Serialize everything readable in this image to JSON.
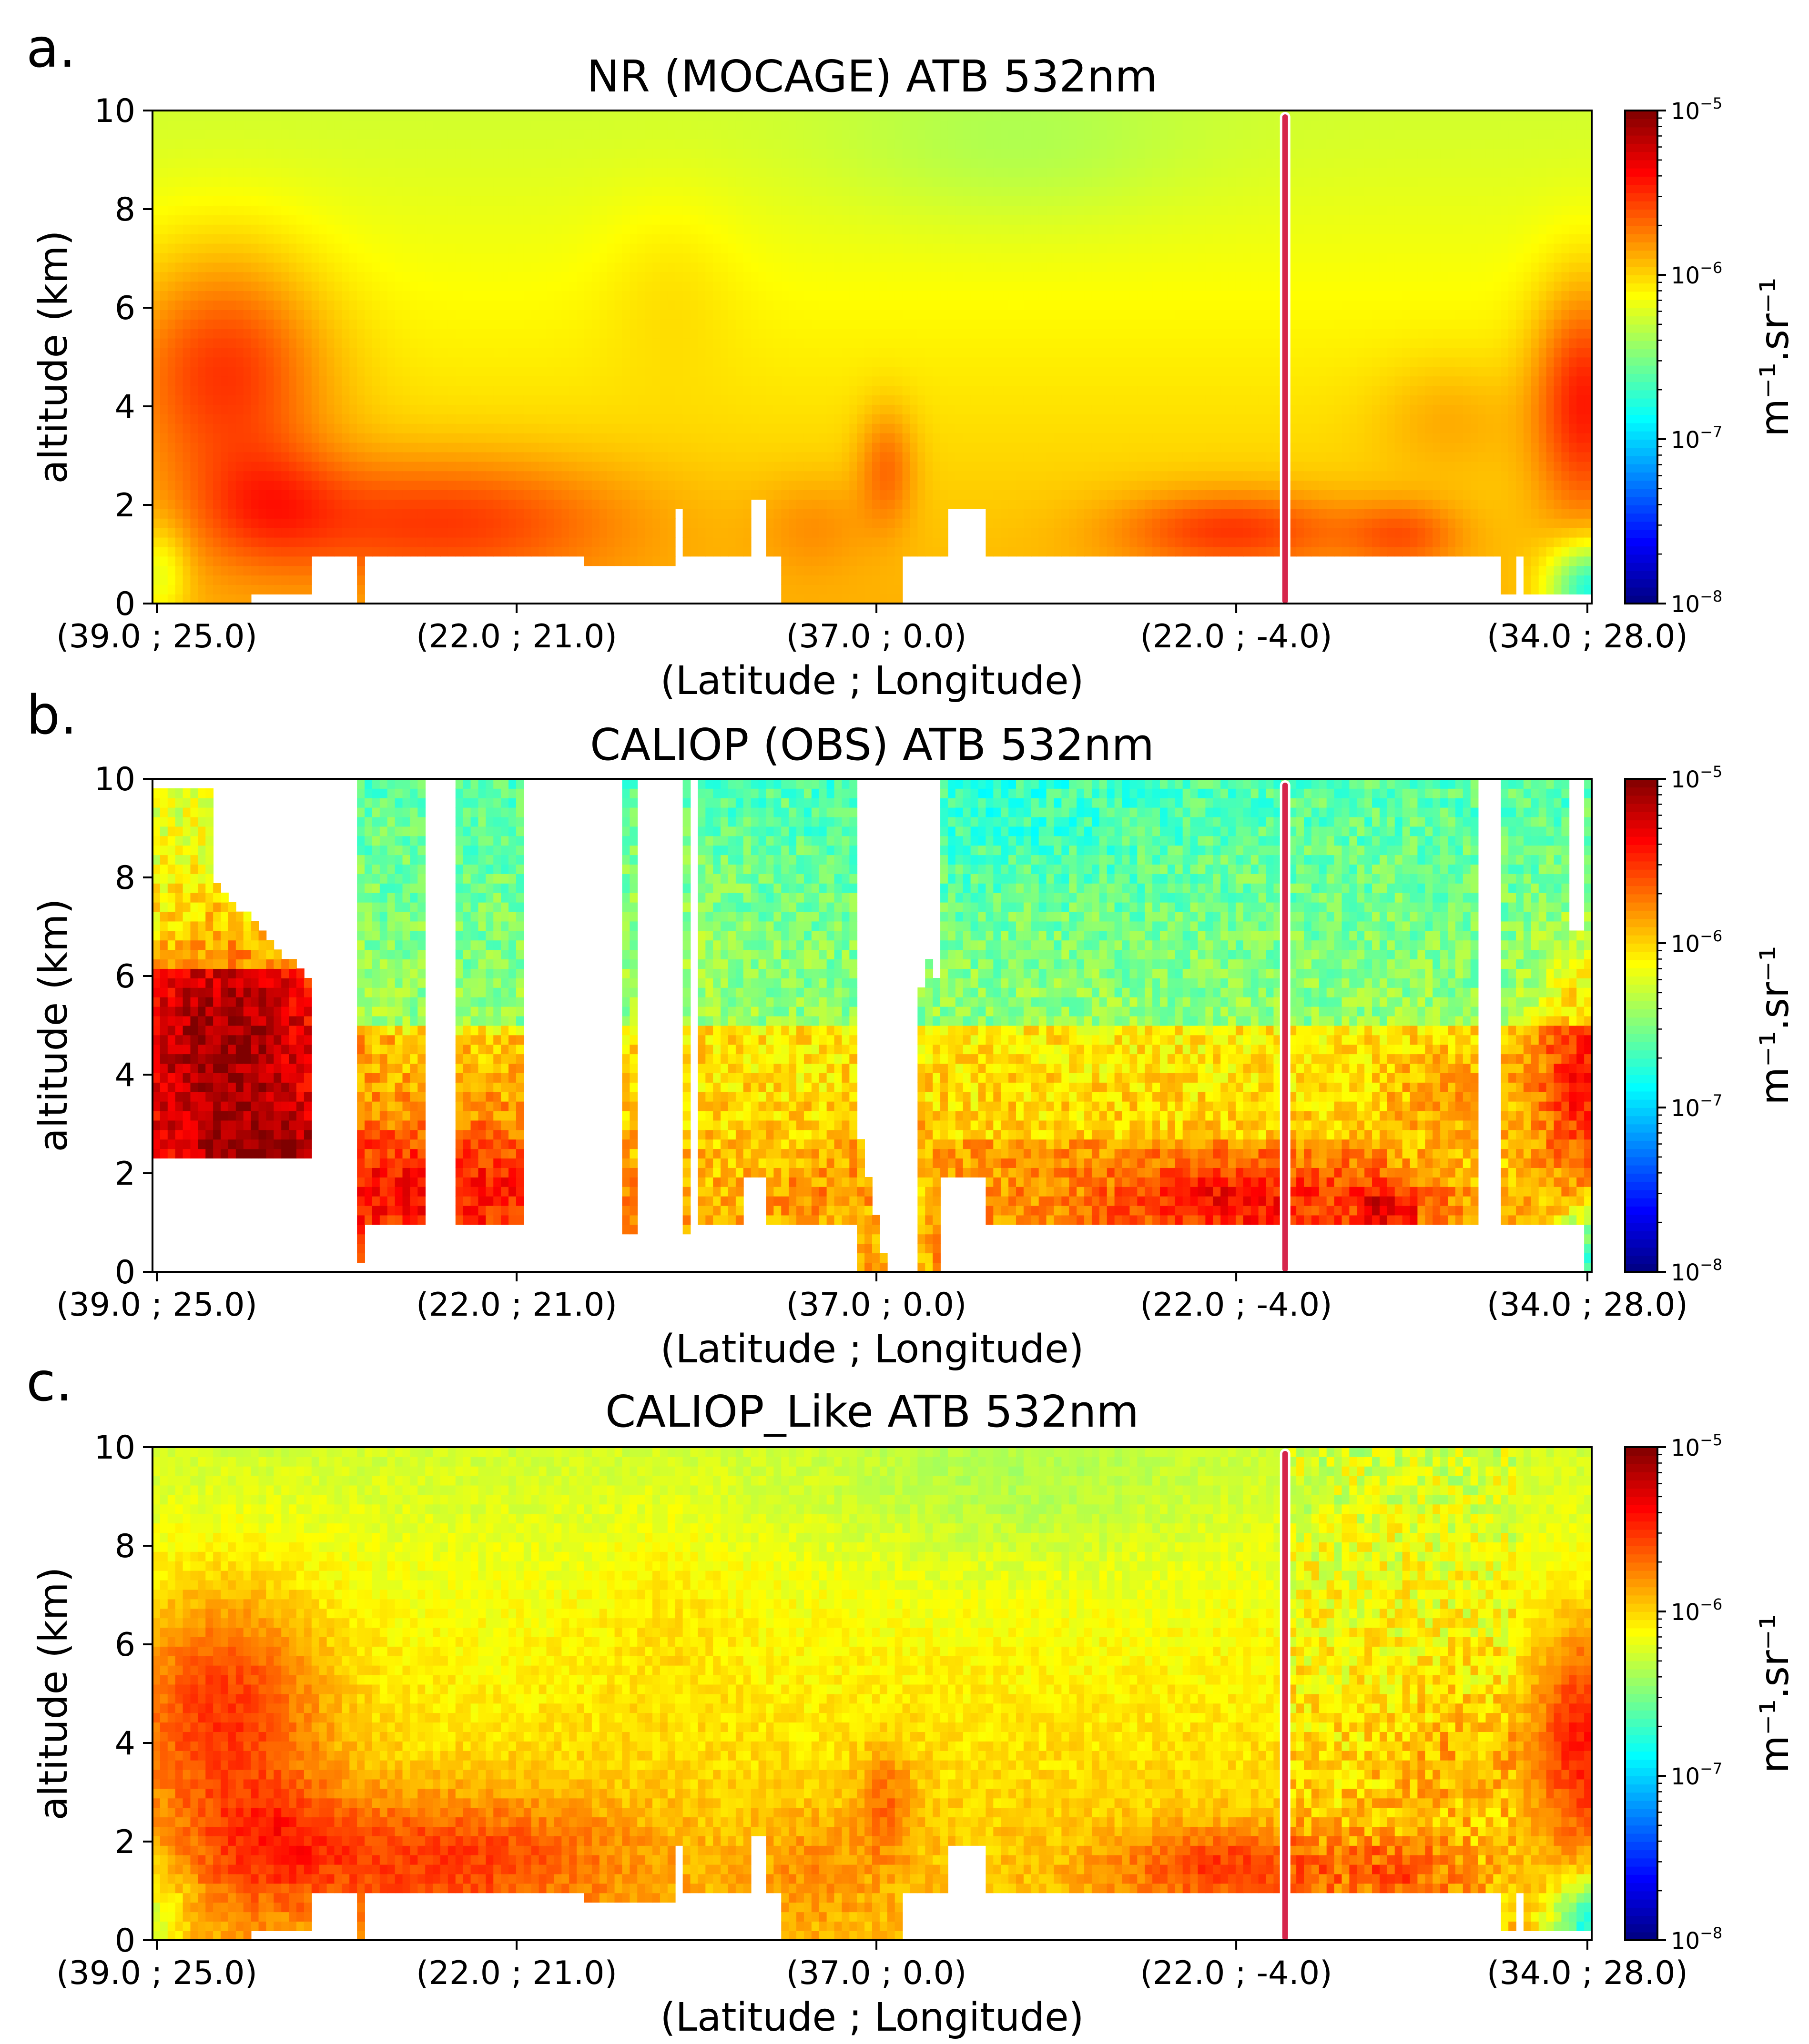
{
  "figure": {
    "x_label": "(Latitude ; Longitude)",
    "y_label": "altitude (km)",
    "colorbar_label": "m⁻¹.sr⁻¹",
    "colorbar_ticks": [
      {
        "base": "10",
        "exp": "−5"
      },
      {
        "base": "10",
        "exp": "−6"
      },
      {
        "base": "10",
        "exp": "−7"
      },
      {
        "base": "10",
        "exp": "−8"
      }
    ],
    "colormap": [
      "#00007f",
      "#0000ff",
      "#007fff",
      "#00ffff",
      "#7fff7f",
      "#ffff00",
      "#ff7f00",
      "#ff0000",
      "#7f0000"
    ],
    "marker_color": "#d6264b"
  },
  "chart_data": [
    {
      "panel_label": "a.",
      "type": "heatmap",
      "title": "NR (MOCAGE) ATB 532nm",
      "xlabel": "(Latitude ; Longitude)",
      "ylabel": "altitude (km)",
      "x_tick_labels": [
        "(39.0 ; 25.0)",
        "(22.0 ; 21.0)",
        "(37.0 ; 0.0)",
        "(22.0 ; -4.0)",
        "(34.0 ; 28.0)"
      ],
      "y_ticks": [
        0,
        2,
        4,
        6,
        8,
        10
      ],
      "ylim": [
        0,
        10
      ],
      "colorbar": {
        "scale": "log",
        "range": [
          1e-08,
          1e-05
        ],
        "label": "m⁻¹.sr⁻¹"
      },
      "marker_line_position": "(22.0 ; -4.0)",
      "mode": "model"
    },
    {
      "panel_label": "b.",
      "type": "heatmap",
      "title": "CALIOP (OBS) ATB 532nm",
      "xlabel": "(Latitude ; Longitude)",
      "ylabel": "altitude (km)",
      "x_tick_labels": [
        "(39.0 ; 25.0)",
        "(22.0 ; 21.0)",
        "(37.0 ; 0.0)",
        "(22.0 ; -4.0)",
        "(34.0 ; 28.0)"
      ],
      "y_ticks": [
        0,
        2,
        4,
        6,
        8,
        10
      ],
      "ylim": [
        0,
        10
      ],
      "colorbar": {
        "scale": "log",
        "range": [
          1e-08,
          1e-05
        ],
        "label": "m⁻¹.sr⁻¹"
      },
      "marker_line_position": "(22.0 ; -4.0)",
      "mode": "obs"
    },
    {
      "panel_label": "c.",
      "type": "heatmap",
      "title": "CALIOP_Like ATB 532nm",
      "xlabel": "(Latitude ; Longitude)",
      "ylabel": "altitude (km)",
      "x_tick_labels": [
        "(39.0 ; 25.0)",
        "(22.0 ; 21.0)",
        "(37.0 ; 0.0)",
        "(22.0 ; -4.0)",
        "(34.0 ; 28.0)"
      ],
      "y_ticks": [
        0,
        2,
        4,
        6,
        8,
        10
      ],
      "ylim": [
        0,
        10
      ],
      "colorbar": {
        "scale": "log",
        "range": [
          1e-08,
          1e-05
        ],
        "label": "m⁻¹.sr⁻¹"
      },
      "marker_line_position": "(22.0 ; -4.0)",
      "mode": "like"
    }
  ]
}
